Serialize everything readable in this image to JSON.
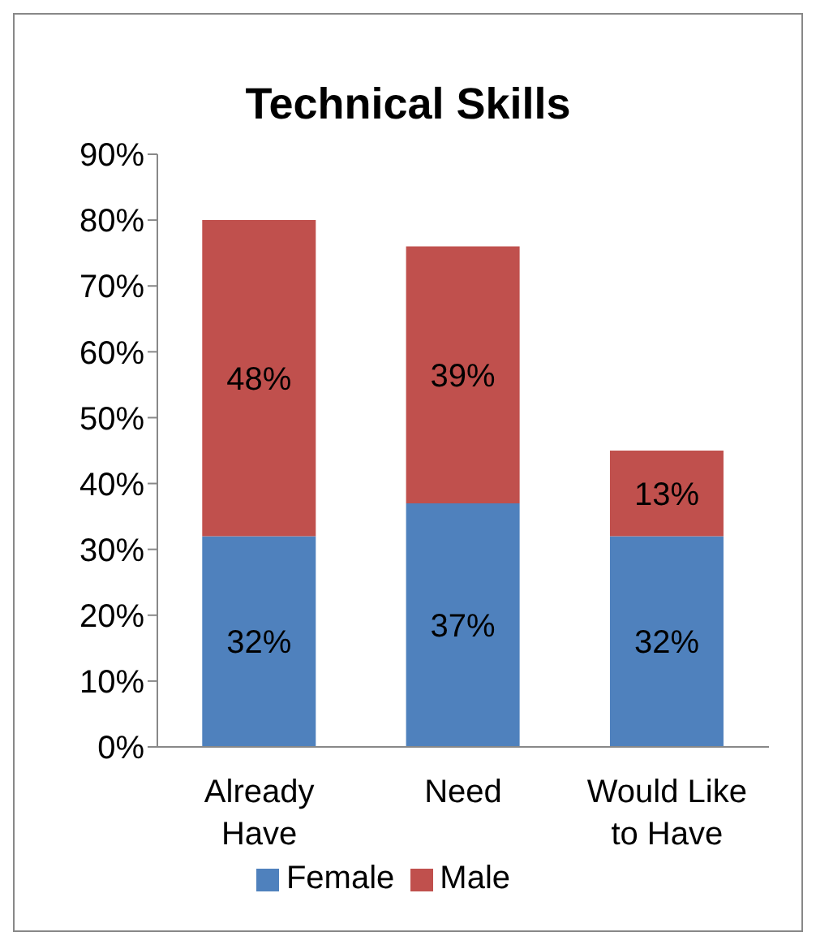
{
  "chart_data": {
    "type": "bar",
    "title": "Technical Skills",
    "categories": [
      "Already Have",
      "Need",
      "Would Like to Have"
    ],
    "stacked": true,
    "series": [
      {
        "name": "Female",
        "color": "#4f81bd",
        "values": [
          32,
          37,
          32
        ],
        "value_labels": [
          "32%",
          "37%",
          "32%"
        ]
      },
      {
        "name": "Male",
        "color": "#c0504d",
        "values": [
          48,
          39,
          13
        ],
        "value_labels": [
          "48%",
          "39%",
          "13%"
        ]
      }
    ],
    "ylim": [
      0,
      90
    ],
    "yticks": [
      {
        "value": 0,
        "label": "0%"
      },
      {
        "value": 10,
        "label": "10%"
      },
      {
        "value": 20,
        "label": "20%"
      },
      {
        "value": 30,
        "label": "30%"
      },
      {
        "value": 40,
        "label": "40%"
      },
      {
        "value": 50,
        "label": "50%"
      },
      {
        "value": 60,
        "label": "60%"
      },
      {
        "value": 70,
        "label": "70%"
      },
      {
        "value": 80,
        "label": "80%"
      },
      {
        "value": 90,
        "label": "90%"
      }
    ],
    "grid": false,
    "legend": "bottom"
  }
}
